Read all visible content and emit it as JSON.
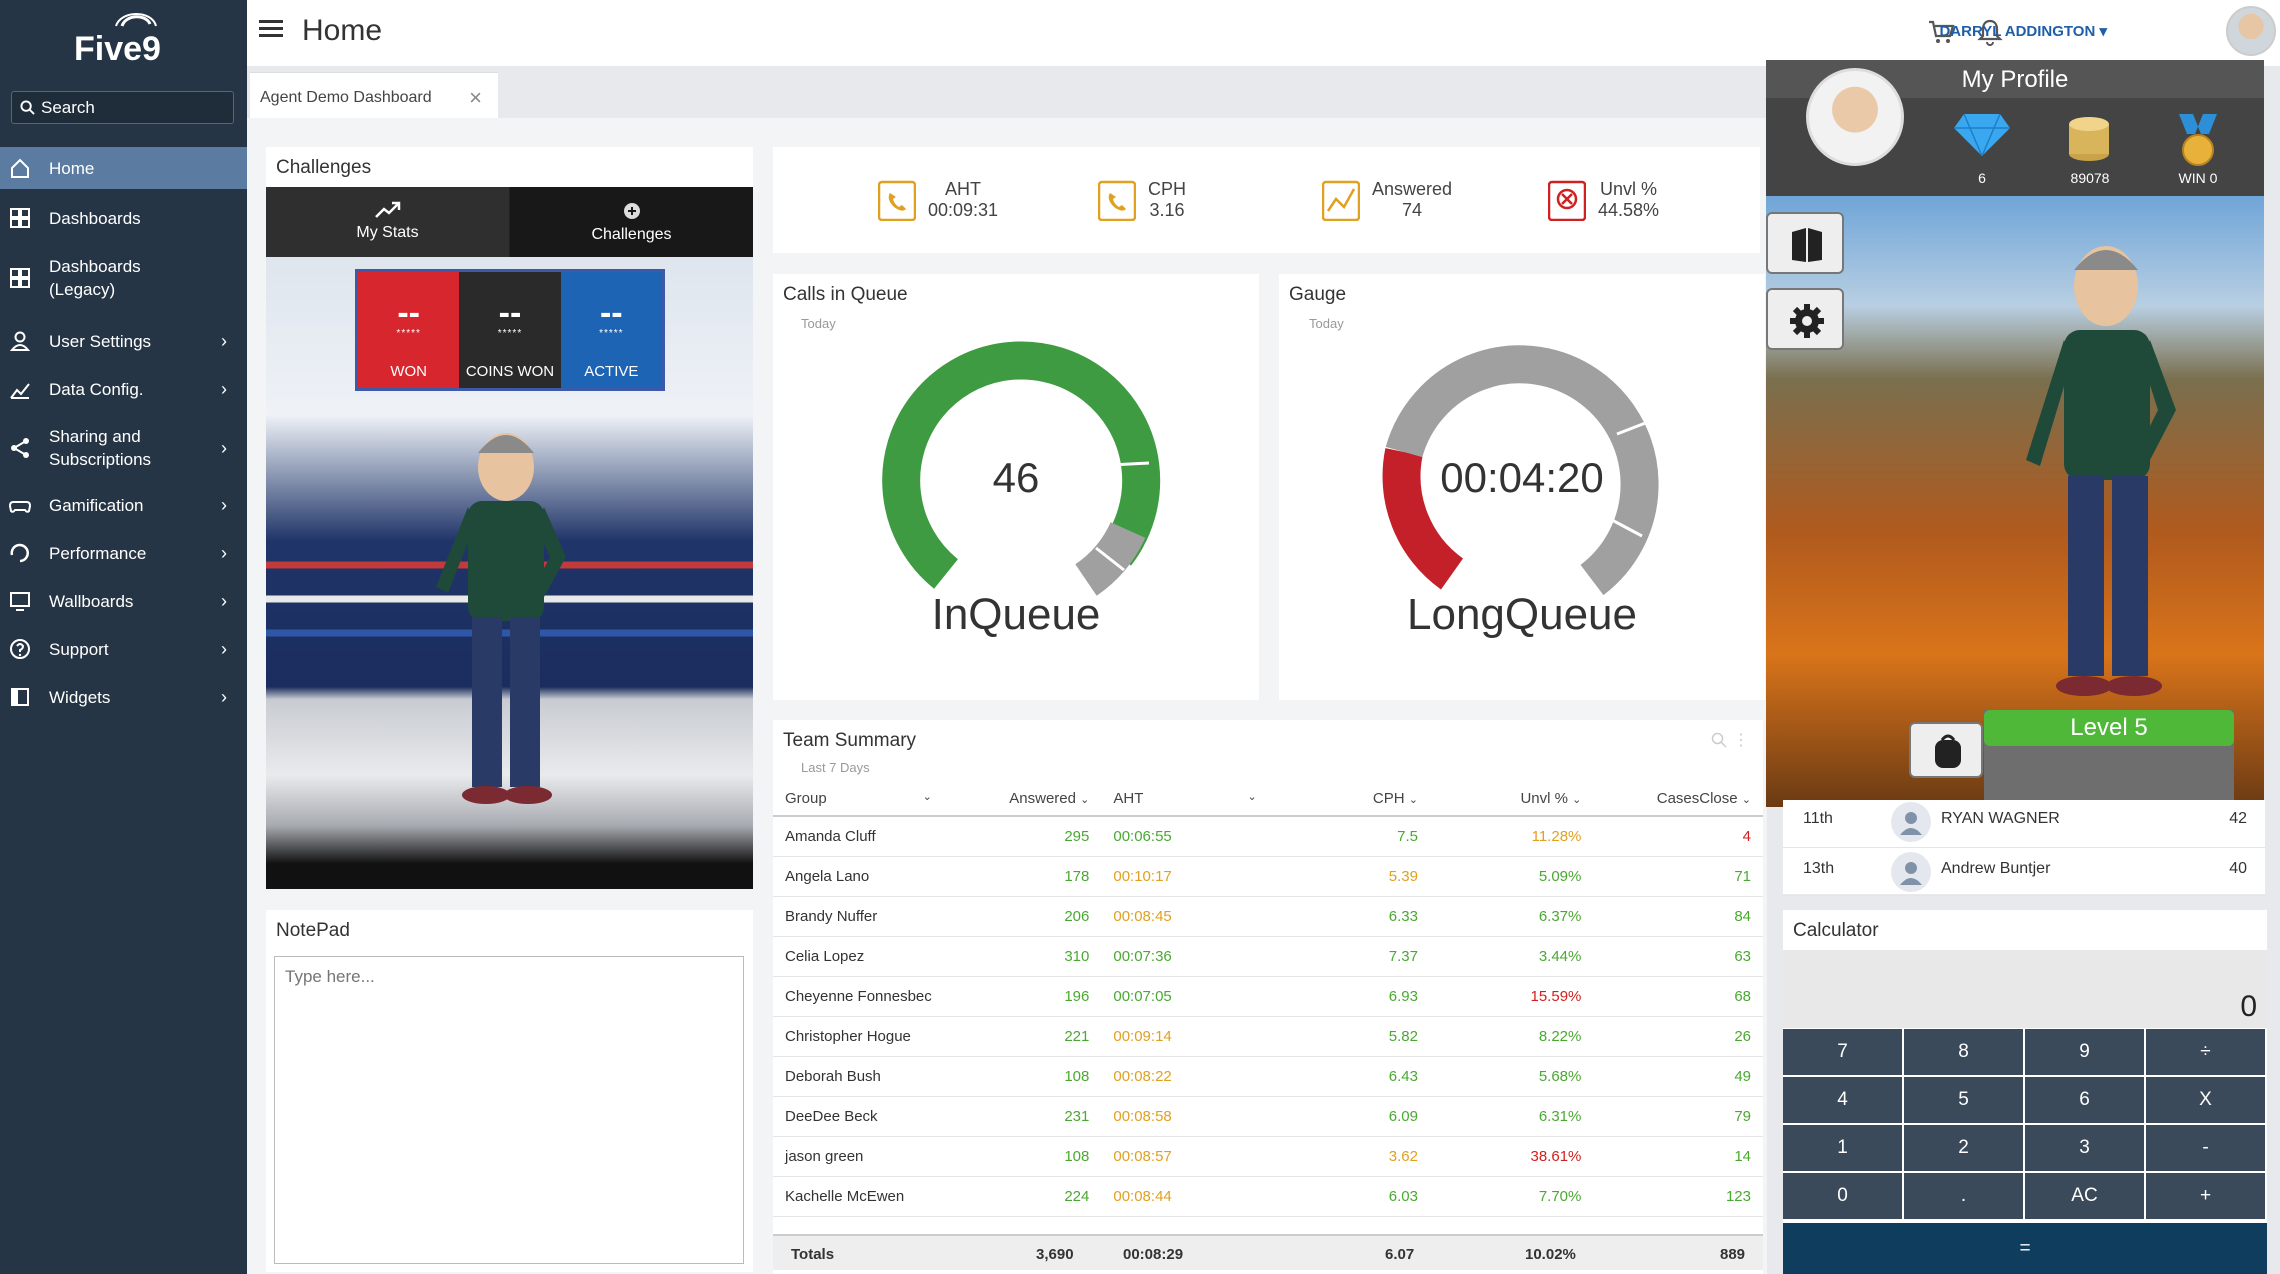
{
  "app": {
    "logo": "Five9",
    "page_title": "Home"
  },
  "search": {
    "label": "Search"
  },
  "sidebar": {
    "items": [
      {
        "label": "Home",
        "icon": "home-icon",
        "chevron": false
      },
      {
        "label": "Dashboards",
        "icon": "dashboards-icon",
        "chevron": false
      },
      {
        "label": "Dashboards\n(Legacy)",
        "icon": "dashboards-icon",
        "chevron": false
      },
      {
        "label": "User Settings",
        "icon": "user-icon",
        "chevron": true
      },
      {
        "label": "Data Config.",
        "icon": "chart-pencil-icon",
        "chevron": true
      },
      {
        "label": "Sharing and\nSubscriptions",
        "icon": "share-icon",
        "chevron": true
      },
      {
        "label": "Gamification",
        "icon": "gamepad-icon",
        "chevron": true
      },
      {
        "label": "Performance",
        "icon": "performance-icon",
        "chevron": true
      },
      {
        "label": "Wallboards",
        "icon": "monitor-icon",
        "chevron": true
      },
      {
        "label": "Support",
        "icon": "help-icon",
        "chevron": true
      },
      {
        "label": "Widgets",
        "icon": "widgets-icon",
        "chevron": true
      }
    ]
  },
  "header": {
    "user_name": "DARRYL ADDINGTON"
  },
  "tabs": [
    {
      "label": "Agent Demo Dashboard"
    }
  ],
  "challenges": {
    "title": "Challenges",
    "tab_my_stats": "My Stats",
    "tab_challenges": "Challenges",
    "scoreboard": [
      {
        "value": "--",
        "stars": "*****",
        "label": "WON",
        "color": "#d8262e"
      },
      {
        "value": "--",
        "stars": "*****",
        "label": "COINS WON",
        "color": "#2a2a2a"
      },
      {
        "value": "--",
        "stars": "*****",
        "label": "ACTIVE",
        "color": "#1e64b4"
      }
    ]
  },
  "stats": [
    {
      "label": "AHT",
      "value": "00:09:31",
      "icon": "phone-clock-icon"
    },
    {
      "label": "CPH",
      "value": "3.16",
      "icon": "phone-clock-icon"
    },
    {
      "label": "Answered",
      "value": "74",
      "icon": "trend-chart-icon"
    },
    {
      "label": "Unvl %",
      "value": "44.58%",
      "icon": "phone-cancel-icon"
    }
  ],
  "calls_in_queue": {
    "title": "Calls in Queue",
    "sub": "Today",
    "value": "46",
    "label": "InQueue"
  },
  "gauge": {
    "title": "Gauge",
    "sub": "Today",
    "value": "00:04:20",
    "label": "LongQueue"
  },
  "team_summary": {
    "title": "Team Summary",
    "sub": "Last 7 Days",
    "columns": [
      "Group",
      "Answered",
      "AHT",
      "CPH",
      "Unvl %",
      "CasesClose"
    ],
    "rows": [
      [
        "Amanda Cluff",
        "295",
        "00:06:55",
        "7.5",
        "11.28%",
        "4"
      ],
      [
        "Angela Lano",
        "178",
        "00:10:17",
        "5.39",
        "5.09%",
        "71"
      ],
      [
        "Brandy Nuffer",
        "206",
        "00:08:45",
        "6.33",
        "6.37%",
        "84"
      ],
      [
        "Celia Lopez",
        "310",
        "00:07:36",
        "7.37",
        "3.44%",
        "63"
      ],
      [
        "Cheyenne Fonnesbec",
        "196",
        "00:07:05",
        "6.93",
        "15.59%",
        "68"
      ],
      [
        "Christopher Hogue",
        "221",
        "00:09:14",
        "5.82",
        "8.22%",
        "26"
      ],
      [
        "Deborah Bush",
        "108",
        "00:08:22",
        "6.43",
        "5.68%",
        "49"
      ],
      [
        "DeeDee Beck",
        "231",
        "00:08:58",
        "6.09",
        "6.31%",
        "79"
      ],
      [
        "jason green",
        "108",
        "00:08:57",
        "3.62",
        "38.61%",
        "14"
      ],
      [
        "Kachelle McEwen",
        "224",
        "00:08:44",
        "6.03",
        "7.70%",
        "123"
      ]
    ],
    "row_colors": [
      [
        "#4aa832",
        "#4aa832",
        "#4aa832",
        "#e0a020",
        "#d02020"
      ],
      [
        "#4aa832",
        "#e0a020",
        "#e0a020",
        "#4aa832",
        "#4aa832"
      ],
      [
        "#4aa832",
        "#e0a020",
        "#4aa832",
        "#4aa832",
        "#4aa832"
      ],
      [
        "#4aa832",
        "#4aa832",
        "#4aa832",
        "#4aa832",
        "#4aa832"
      ],
      [
        "#4aa832",
        "#4aa832",
        "#4aa832",
        "#d02020",
        "#4aa832"
      ],
      [
        "#4aa832",
        "#e0a020",
        "#4aa832",
        "#4aa832",
        "#4aa832"
      ],
      [
        "#4aa832",
        "#e0a020",
        "#4aa832",
        "#4aa832",
        "#4aa832"
      ],
      [
        "#4aa832",
        "#e0a020",
        "#4aa832",
        "#4aa832",
        "#4aa832"
      ],
      [
        "#4aa832",
        "#e0a020",
        "#e0a020",
        "#d02020",
        "#4aa832"
      ],
      [
        "#4aa832",
        "#e0a020",
        "#4aa832",
        "#4aa832",
        "#4aa832"
      ]
    ],
    "totals": {
      "label": "Totals",
      "answered": "3,690",
      "aht": "00:08:29",
      "cph": "6.07",
      "unvl": "10.02%",
      "cases": "889"
    }
  },
  "notepad": {
    "title": "NotePad",
    "placeholder": "Type here..."
  },
  "profile": {
    "title": "My Profile",
    "gems": "6",
    "coins": "89078",
    "wins": "WIN 0",
    "level": "Level 5"
  },
  "leaderboard": [
    {
      "rank": "11th",
      "name": "RYAN WAGNER",
      "score": "42"
    },
    {
      "rank": "13th",
      "name": "Andrew Buntjer",
      "score": "40"
    }
  ],
  "calculator": {
    "title": "Calculator",
    "display": "0",
    "keys": [
      "7",
      "8",
      "9",
      "÷",
      "4",
      "5",
      "6",
      "X",
      "1",
      "2",
      "3",
      "-",
      "0",
      ".",
      "AC",
      "+"
    ],
    "equals": "="
  }
}
